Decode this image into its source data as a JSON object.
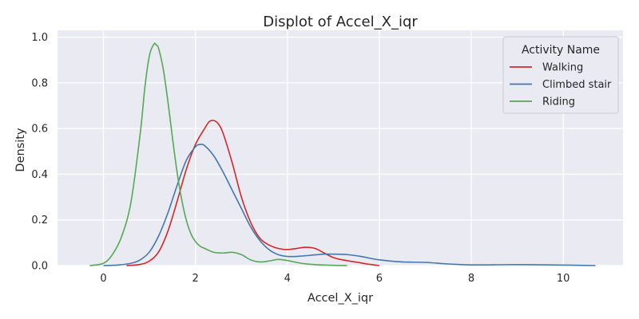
{
  "chart_data": {
    "type": "line",
    "title": "Displot of Accel_X_iqr",
    "xlabel": "Accel_X_iqr",
    "ylabel": "Density",
    "xlim": [
      -1.0,
      11.3
    ],
    "ylim": [
      0,
      1.03
    ],
    "xticks": [
      0,
      2,
      4,
      6,
      8,
      10
    ],
    "yticks": [
      0.0,
      0.2,
      0.4,
      0.6,
      0.8,
      1.0
    ],
    "grid": true,
    "legend": {
      "title": "Activity Name",
      "placement": "top-right"
    },
    "series": [
      {
        "name": "Walking",
        "color": "#d62728",
        "x": [
          0.5,
          0.8,
          1.0,
          1.2,
          1.4,
          1.6,
          1.8,
          2.0,
          2.2,
          2.3,
          2.4,
          2.5,
          2.6,
          2.8,
          3.0,
          3.2,
          3.4,
          3.6,
          3.8,
          4.0,
          4.2,
          4.4,
          4.6,
          4.8,
          5.0,
          5.2,
          5.5,
          5.8,
          6.0
        ],
        "y": [
          0.0,
          0.005,
          0.02,
          0.06,
          0.15,
          0.28,
          0.42,
          0.53,
          0.6,
          0.63,
          0.635,
          0.62,
          0.58,
          0.45,
          0.3,
          0.19,
          0.12,
          0.09,
          0.075,
          0.07,
          0.075,
          0.08,
          0.075,
          0.055,
          0.035,
          0.025,
          0.015,
          0.005,
          0.0
        ]
      },
      {
        "name": "Climbed stair",
        "color": "#4477aa",
        "x": [
          0.0,
          0.3,
          0.6,
          0.8,
          1.0,
          1.2,
          1.4,
          1.6,
          1.8,
          2.0,
          2.1,
          2.2,
          2.4,
          2.6,
          2.8,
          3.0,
          3.2,
          3.4,
          3.6,
          3.8,
          4.0,
          4.2,
          4.5,
          4.8,
          5.0,
          5.3,
          5.6,
          6.0,
          6.5,
          7.0,
          7.5,
          8.0,
          9.0,
          10.0,
          10.7
        ],
        "y": [
          0.0,
          0.002,
          0.01,
          0.025,
          0.06,
          0.13,
          0.23,
          0.35,
          0.46,
          0.52,
          0.53,
          0.525,
          0.48,
          0.41,
          0.33,
          0.25,
          0.17,
          0.11,
          0.07,
          0.048,
          0.04,
          0.04,
          0.045,
          0.05,
          0.05,
          0.048,
          0.04,
          0.025,
          0.016,
          0.014,
          0.007,
          0.003,
          0.004,
          0.002,
          0.0
        ]
      },
      {
        "name": "Riding",
        "color": "#55a855",
        "x": [
          -0.3,
          0.0,
          0.2,
          0.4,
          0.6,
          0.8,
          0.9,
          1.0,
          1.1,
          1.15,
          1.2,
          1.3,
          1.4,
          1.5,
          1.6,
          1.7,
          1.8,
          1.9,
          2.0,
          2.1,
          2.2,
          2.4,
          2.6,
          2.8,
          3.0,
          3.2,
          3.4,
          3.6,
          3.8,
          4.0,
          4.3,
          4.6,
          5.0,
          5.3
        ],
        "y": [
          0.0,
          0.01,
          0.05,
          0.13,
          0.28,
          0.58,
          0.78,
          0.92,
          0.97,
          0.965,
          0.95,
          0.86,
          0.72,
          0.56,
          0.41,
          0.29,
          0.2,
          0.14,
          0.105,
          0.085,
          0.075,
          0.058,
          0.055,
          0.058,
          0.048,
          0.025,
          0.016,
          0.02,
          0.027,
          0.022,
          0.01,
          0.004,
          0.001,
          0.0
        ]
      }
    ]
  }
}
